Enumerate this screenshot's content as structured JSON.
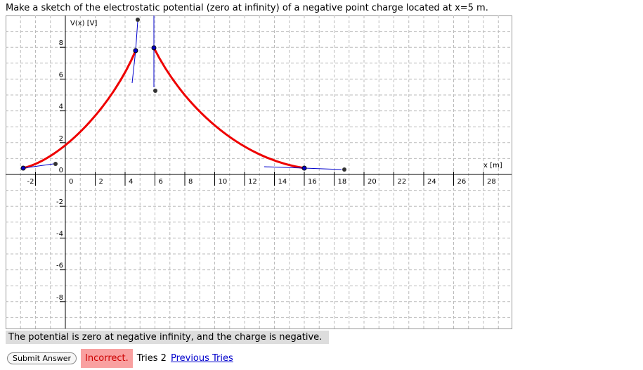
{
  "question": "Make a sketch of the electrostatic potential (zero at infinity) of a negative point charge located at x=5 m.",
  "graph": {
    "y_axis_label": "V(x) [V]",
    "x_axis_label": "x [m]",
    "x_ticks": [
      -2,
      0,
      2,
      4,
      6,
      8,
      10,
      12,
      14,
      16,
      18,
      20,
      22,
      24,
      26,
      28
    ],
    "y_ticks": [
      8,
      6,
      4,
      2,
      0,
      -2,
      -4,
      -6,
      -8
    ]
  },
  "feedback": "The potential is zero at negative infinity, and the charge is negative.",
  "controls": {
    "submit": "Submit Answer",
    "status": "Incorrect.",
    "tries": "Tries 2",
    "previous": "Previous Tries"
  }
}
